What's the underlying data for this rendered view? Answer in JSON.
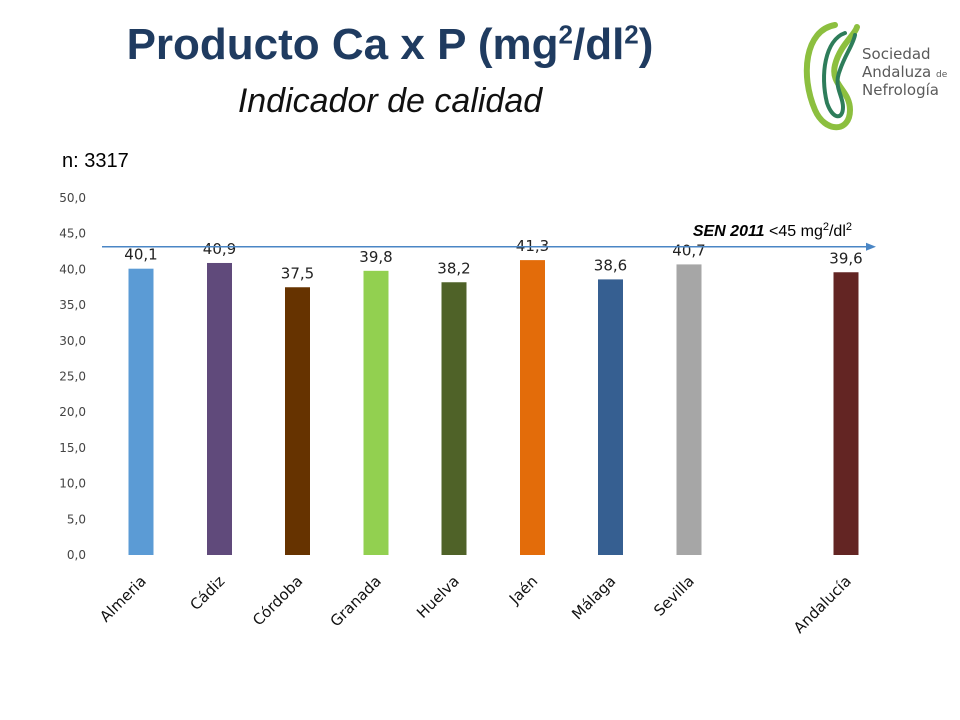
{
  "header": {
    "title": "Producto Ca x P (mg",
    "title_sup1": "2",
    "title_mid": "/dl",
    "title_sup2": "2",
    "title_end": ")",
    "subtitle": "Indicador de calidad",
    "n_label": "n: 3317"
  },
  "logo": {
    "line1": "Sociedad",
    "line2": "Andaluza",
    "line2_small": "de",
    "line3": "Nefrología",
    "colors": [
      "#8cbf3f",
      "#2e7d5a",
      "#6aa84f"
    ]
  },
  "reference": {
    "text_bold": "SEN 2011",
    "text_rest": " <45 ",
    "unit_a": "mg",
    "unit_sup1": "2",
    "unit_b": "/dl",
    "unit_sup2": "2",
    "value": 45,
    "line_color": "#4a86c5"
  },
  "chart_data": {
    "type": "bar",
    "title": "",
    "xlabel": "",
    "ylabel": "",
    "ylim": [
      0,
      50
    ],
    "yticks": [
      "0,0",
      "5,0",
      "10,0",
      "15,0",
      "20,0",
      "25,0",
      "30,0",
      "35,0",
      "40,0",
      "45,0",
      "50,0"
    ],
    "grid": false,
    "categories": [
      "Almeria",
      "Cádiz",
      "Córdoba",
      "Granada",
      "Huelva",
      "Jaén",
      "Málaga",
      "Sevilla",
      "Andalucía"
    ],
    "values": [
      40.1,
      40.9,
      37.5,
      39.8,
      38.2,
      41.3,
      38.6,
      40.7,
      39.6
    ],
    "data_labels": [
      "40,1",
      "40,9",
      "37,5",
      "39,8",
      "38,2",
      "41,3",
      "38,6",
      "40,7",
      "39,6"
    ],
    "colors": [
      "#5b9bd5",
      "#604a7b",
      "#663300",
      "#92d050",
      "#4f6228",
      "#e36c0a",
      "#365f91",
      "#a6a6a6",
      "#632523"
    ]
  }
}
